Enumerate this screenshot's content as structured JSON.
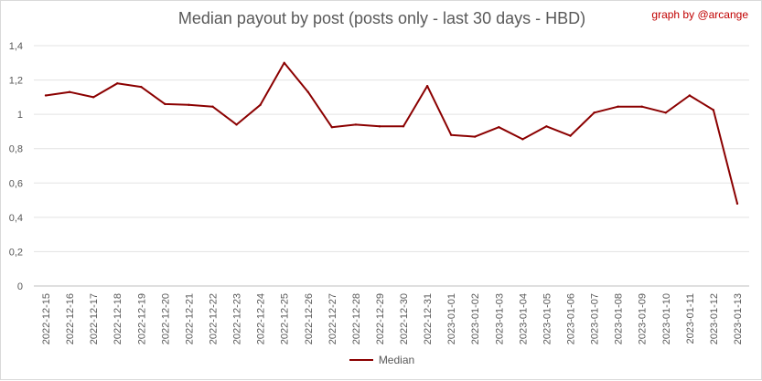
{
  "chart_data": {
    "type": "line",
    "title": "Median payout by post (posts only - last 30 days - HBD)",
    "credit": "graph by @arcange",
    "xlabel": "",
    "ylabel": "",
    "categories": [
      "2022-12-15",
      "2022-12-16",
      "2022-12-17",
      "2022-12-18",
      "2022-12-19",
      "2022-12-20",
      "2022-12-21",
      "2022-12-22",
      "2022-12-23",
      "2022-12-24",
      "2022-12-25",
      "2022-12-26",
      "2022-12-27",
      "2022-12-28",
      "2022-12-29",
      "2022-12-30",
      "2022-12-31",
      "2023-01-01",
      "2023-01-02",
      "2023-01-03",
      "2023-01-04",
      "2023-01-05",
      "2023-01-06",
      "2023-01-07",
      "2023-01-08",
      "2023-01-09",
      "2023-01-10",
      "2023-01-11",
      "2023-01-12",
      "2023-01-13"
    ],
    "series": [
      {
        "name": "Median",
        "color": "#8b0000",
        "values": [
          1.11,
          1.13,
          1.1,
          1.18,
          1.16,
          1.06,
          1.055,
          1.045,
          0.94,
          1.055,
          1.3,
          1.13,
          0.925,
          0.94,
          0.93,
          0.93,
          1.165,
          0.88,
          0.87,
          0.925,
          0.855,
          0.93,
          0.875,
          1.01,
          1.045,
          1.045,
          1.01,
          1.11,
          1.025,
          0.48
        ]
      }
    ],
    "ylim": [
      0,
      1.4
    ],
    "yticks": [
      {
        "value": 0,
        "label": "0"
      },
      {
        "value": 0.2,
        "label": "0,2"
      },
      {
        "value": 0.4,
        "label": "0,4"
      },
      {
        "value": 0.6,
        "label": "0,6"
      },
      {
        "value": 0.8,
        "label": "0,8"
      },
      {
        "value": 1.0,
        "label": "1"
      },
      {
        "value": 1.2,
        "label": "1,2"
      },
      {
        "value": 1.4,
        "label": "1,4"
      }
    ],
    "grid": true,
    "legend_position": "bottom"
  }
}
